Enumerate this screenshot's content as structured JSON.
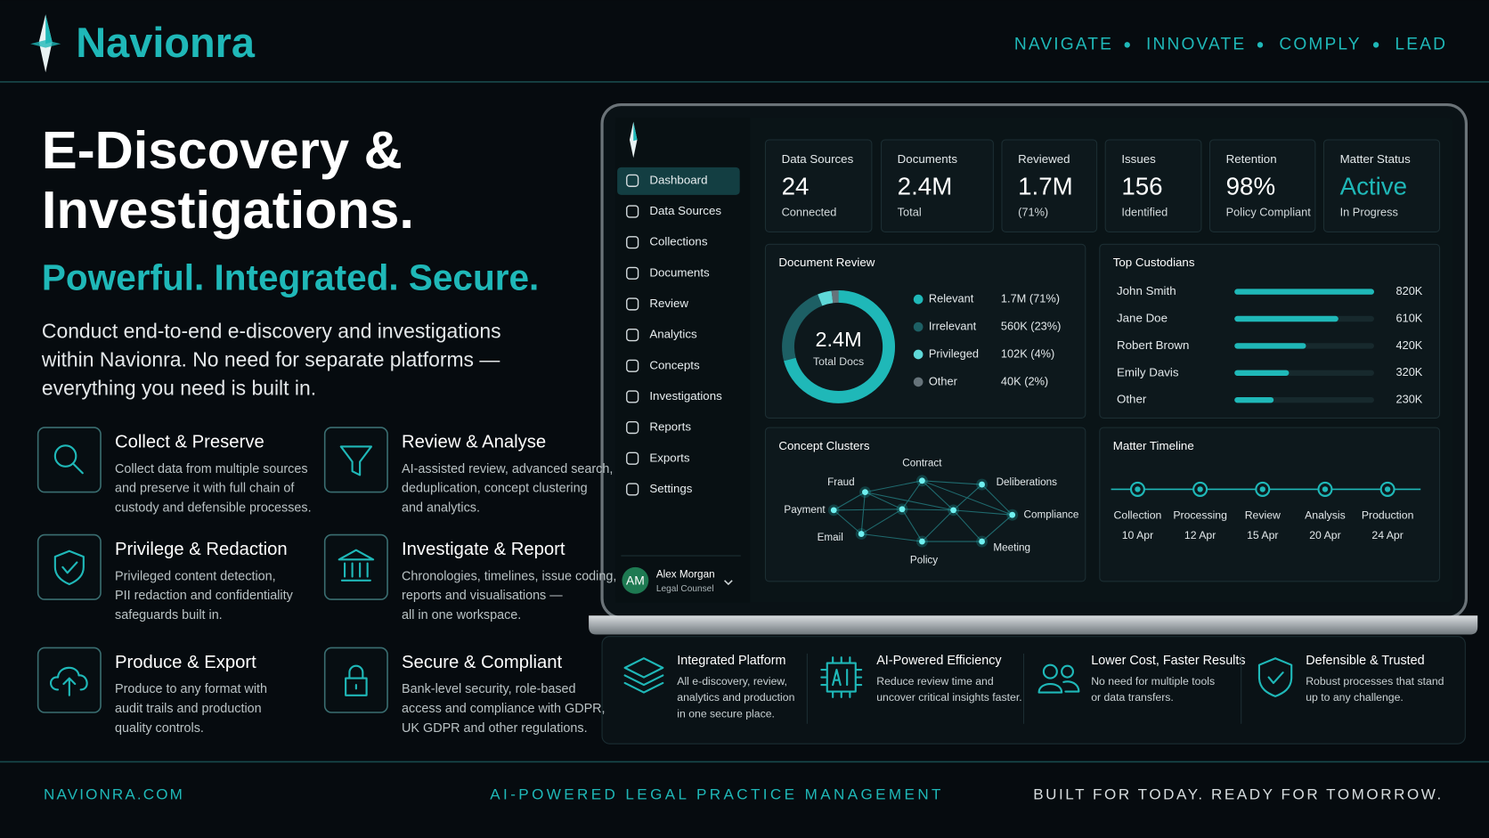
{
  "header": {
    "brand": "Navionra",
    "tagline": [
      "NAVIGATE",
      "INNOVATE",
      "COMPLY",
      "LEAD"
    ]
  },
  "hero": {
    "title": [
      "E-Discovery &",
      "Investigations."
    ],
    "subtitle": "Powerful. Integrated. Secure.",
    "description": [
      "Conduct end-to-end e-discovery and investigations",
      "within Navionra. No need for separate platforms —",
      "everything you need is built in."
    ]
  },
  "features": [
    {
      "title": "Collect & Preserve",
      "description": [
        "Collect data from multiple sources",
        "and preserve it with full chain of",
        "custody and defensible processes."
      ]
    },
    {
      "title": "Review & Analyse",
      "description": [
        "AI-assisted review, advanced search,",
        "deduplication, concept clustering",
        "and analytics."
      ]
    },
    {
      "title": "Privilege & Redaction",
      "description": [
        "Privileged content detection,",
        "PII redaction and confidentiality",
        "safeguards built in."
      ]
    },
    {
      "title": "Investigate & Report",
      "description": [
        "Chronologies, timelines, issue coding,",
        "reports and visualisations —",
        "all in one workspace."
      ]
    },
    {
      "title": "Produce & Export",
      "description": [
        "Produce to any format with",
        "audit trails and production",
        "quality controls."
      ]
    },
    {
      "title": "Secure & Compliant",
      "description": [
        "Bank-level security, role-based",
        "access and compliance with GDPR,",
        "UK GDPR and other regulations."
      ]
    }
  ],
  "dashboard": {
    "nav": [
      "Dashboard",
      "Data Sources",
      "Collections",
      "Documents",
      "Review",
      "Analytics",
      "Concepts",
      "Investigations",
      "Reports",
      "Exports",
      "Settings"
    ],
    "user": {
      "initials": "AM",
      "name": "Alex Morgan",
      "role": "Legal Counsel"
    },
    "stats": [
      {
        "label": "Data Sources",
        "value": "24",
        "note": "Connected"
      },
      {
        "label": "Documents",
        "value": "2.4M",
        "note": "Total"
      },
      {
        "label": "Reviewed",
        "value": "1.7M",
        "note": "(71%)"
      },
      {
        "label": "Issues",
        "value": "156",
        "note": "Identified"
      },
      {
        "label": "Retention",
        "value": "98%",
        "note": "Policy Compliant"
      },
      {
        "label": "Matter Status",
        "value": "Active",
        "note": "In Progress"
      }
    ],
    "document_review": {
      "title": "Document Review",
      "total": "2.4M",
      "total_label": "Total Docs",
      "segments": [
        {
          "name": "Relevant",
          "percent": 71,
          "label": "1.7M (71%)"
        },
        {
          "name": "Irrelevant",
          "percent": 23,
          "label": "560K (23%)"
        },
        {
          "name": "Privileged",
          "percent": 4,
          "label": "102K (4%)"
        },
        {
          "name": "Other",
          "percent": 2,
          "label": "40K (2%)"
        }
      ]
    },
    "custodians": {
      "title": "Top Custodians",
      "rows": [
        {
          "name": "John Smith",
          "value": 820,
          "label": "820K"
        },
        {
          "name": "Jane Doe",
          "value": 610,
          "label": "610K"
        },
        {
          "name": "Robert Brown",
          "value": 420,
          "label": "420K"
        },
        {
          "name": "Emily Davis",
          "value": 320,
          "label": "320K"
        },
        {
          "name": "Other",
          "value": 230,
          "label": "230K"
        }
      ]
    },
    "concepts": {
      "title": "Concept Clusters",
      "terms": [
        "Contract",
        "Fraud",
        "Deliberations",
        "Payment",
        "Compliance",
        "Email",
        "Meeting",
        "Policy"
      ]
    },
    "timeline": {
      "title": "Matter Timeline",
      "events": [
        {
          "stage": "Collection",
          "date": "10 Apr"
        },
        {
          "stage": "Processing",
          "date": "12 Apr"
        },
        {
          "stage": "Review",
          "date": "15 Apr"
        },
        {
          "stage": "Analysis",
          "date": "20 Apr"
        },
        {
          "stage": "Production",
          "date": "24 Apr"
        }
      ]
    }
  },
  "highlights": [
    {
      "title": "Integrated Platform",
      "description": [
        "All e-discovery, review,",
        "analytics and production",
        "in one secure place."
      ]
    },
    {
      "title": "AI-Powered Efficiency",
      "description": [
        "Reduce review time and",
        "uncover critical insights faster."
      ]
    },
    {
      "title": "Lower Cost, Faster Results",
      "description": [
        "No need for multiple tools",
        "or data transfers."
      ]
    },
    {
      "title": "Defensible & Trusted",
      "description": [
        "Robust processes that stand",
        "up to any challenge."
      ]
    }
  ],
  "footer": {
    "website": "NAVIONRA.COM",
    "tagline": "AI-POWERED LEGAL PRACTICE MANAGEMENT",
    "motto": "BUILT FOR TODAY. READY FOR TOMORROW."
  }
}
